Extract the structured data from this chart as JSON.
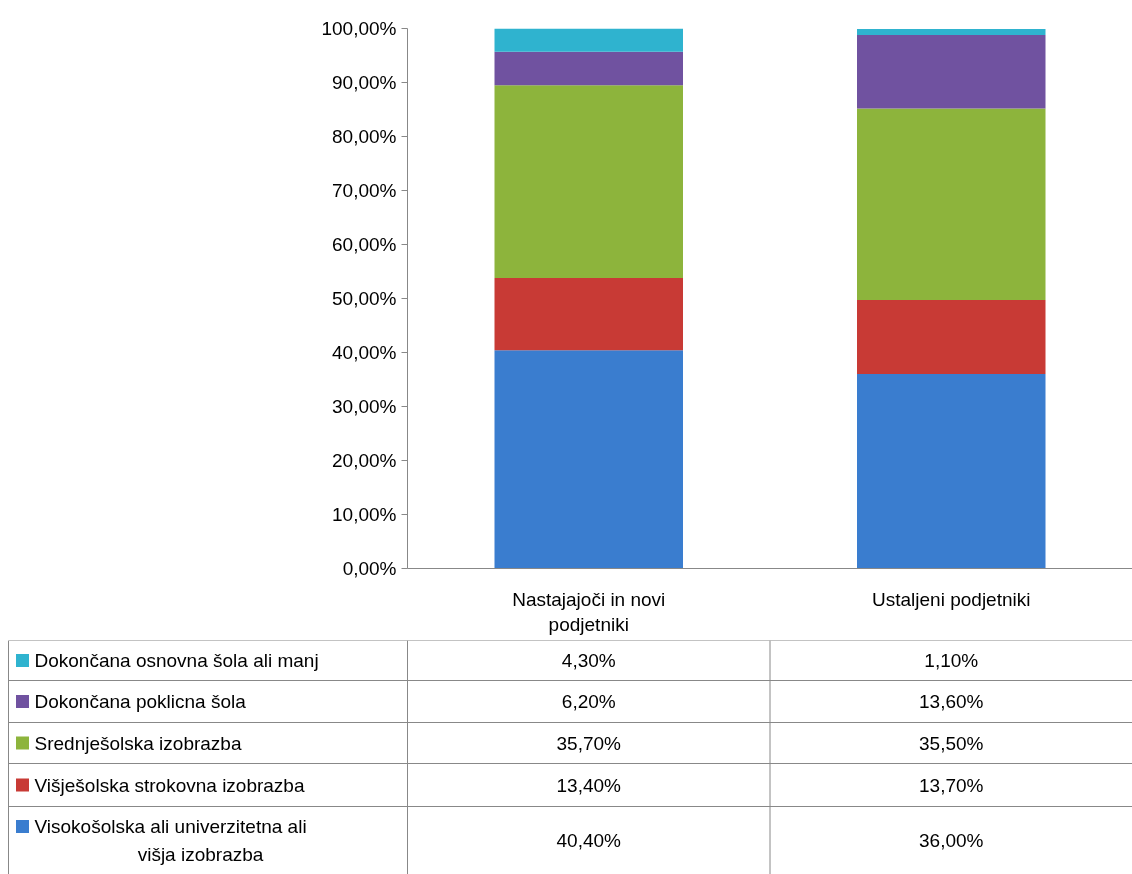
{
  "chart_data": {
    "type": "bar",
    "stacked": true,
    "legend": "bottom",
    "categories": [
      "Nastajajoči in novi podjetniki",
      "Ustaljeni podjetniki"
    ],
    "ylim": [
      0,
      100
    ],
    "yticks": [
      {
        "value": 0,
        "label": "0,00%"
      },
      {
        "value": 10,
        "label": "10,00%"
      },
      {
        "value": 20,
        "label": "20,00%"
      },
      {
        "value": 30,
        "label": "30,00%"
      },
      {
        "value": 40,
        "label": "40,00%"
      },
      {
        "value": 50,
        "label": "50,00%"
      },
      {
        "value": 60,
        "label": "60,00%"
      },
      {
        "value": 70,
        "label": "70,00%"
      },
      {
        "value": 80,
        "label": "80,00%"
      },
      {
        "value": 90,
        "label": "90,00%"
      },
      {
        "value": 100,
        "label": "100,00%"
      }
    ],
    "series": [
      {
        "name": "Visokošolska ali univerzitetna ali višja izobrazba",
        "color": "#3a7dcf",
        "values": [
          40.4,
          36.0
        ],
        "value_labels": [
          "40,40%",
          "36,00%"
        ]
      },
      {
        "name": "Višješolska strokovna izobrazba",
        "color": "#c83a35",
        "values": [
          13.4,
          13.7
        ],
        "value_labels": [
          "13,40%",
          "13,70%"
        ]
      },
      {
        "name": "Srednješolska izobrazba",
        "color": "#8db43c",
        "values": [
          35.7,
          35.5
        ],
        "value_labels": [
          "35,70%",
          "35,50%"
        ]
      },
      {
        "name": "Dokončana poklicna šola",
        "color": "#7052a0",
        "values": [
          6.2,
          13.6
        ],
        "value_labels": [
          "6,20%",
          "13,60%"
        ]
      },
      {
        "name": "Dokončana osnovna šola ali manj",
        "color": "#2fb3cf",
        "values": [
          4.3,
          1.1
        ],
        "value_labels": [
          "4,30%",
          "1,10%"
        ]
      }
    ]
  }
}
